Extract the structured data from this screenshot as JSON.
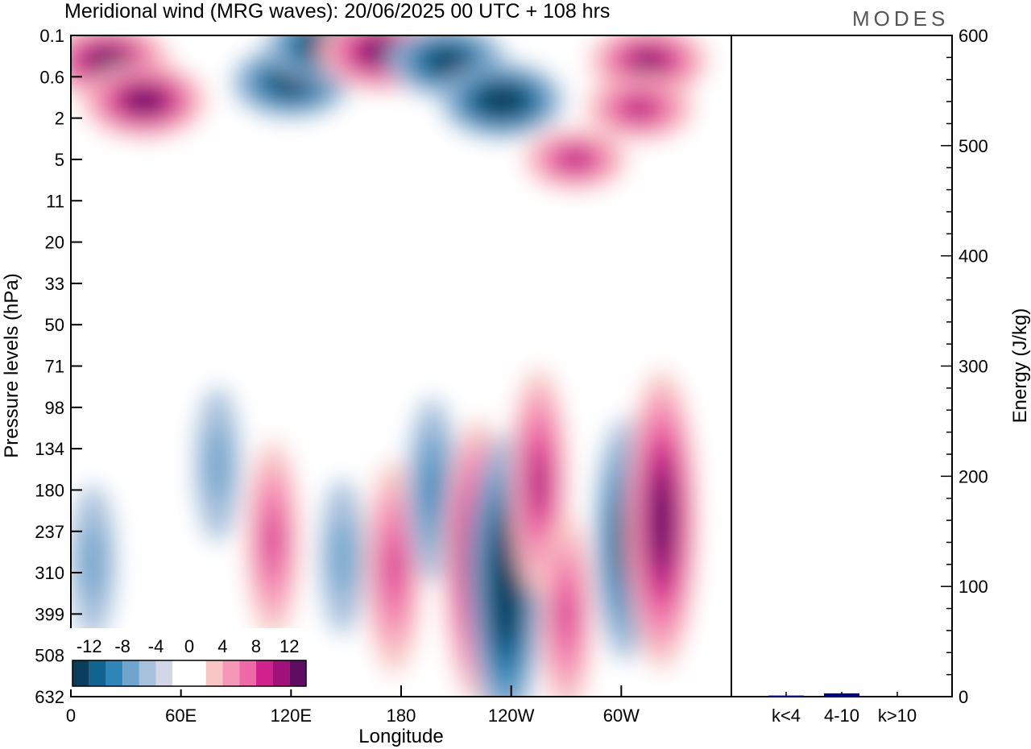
{
  "chart_data": {
    "type": "heatmap",
    "title": "Meridional wind (MRG waves):  20/06/2025  00 UTC  + 108 hrs",
    "logo": "MODES",
    "xlabel": "Longitude",
    "ylabel": "Pressure levels (hPa)",
    "x_ticks": [
      "0",
      "60E",
      "120E",
      "180",
      "120W",
      "60W"
    ],
    "y_ticks": [
      "0.1",
      "0.6",
      "2",
      "5",
      "11",
      "20",
      "33",
      "50",
      "71",
      "98",
      "134",
      "180",
      "237",
      "310",
      "399",
      "508",
      "632"
    ],
    "colorbar": {
      "labels": [
        "-12",
        "-8",
        "-4",
        "0",
        "4",
        "8",
        "12"
      ],
      "colors": [
        "#0a3d5c",
        "#10648f",
        "#2e86b8",
        "#6fa5cc",
        "#a7c0dc",
        "#d3d6e7",
        "#ffffff",
        "#ffffff",
        "#f8c7c5",
        "#f597b8",
        "#ee6aa7",
        "#d0218c",
        "#a0127a",
        "#5e0d63"
      ]
    },
    "energy_panel": {
      "ylabel": "Energy (J/kg)",
      "y_ticks": [
        "0",
        "100",
        "200",
        "300",
        "400",
        "500",
        "600"
      ],
      "ylim": [
        0,
        600
      ],
      "categories": [
        "k<4",
        "4-10",
        "k>10"
      ],
      "values": [
        1,
        3,
        0
      ],
      "bar_colors": [
        "#000080",
        "#000080",
        "#000080"
      ]
    },
    "features": [
      {
        "lon": 20,
        "level": 0.3,
        "v": 13
      },
      {
        "lon": 40,
        "level": 1.2,
        "v": 13
      },
      {
        "lon": 120,
        "level": 0.7,
        "v": -12
      },
      {
        "lon": 140,
        "level": 0.15,
        "v": -13
      },
      {
        "lon": 170,
        "level": 0.2,
        "v": 14
      },
      {
        "lon": 205,
        "level": 0.3,
        "v": -12
      },
      {
        "lon": 235,
        "level": 1.2,
        "v": -13
      },
      {
        "lon": 315,
        "level": 0.3,
        "v": 12
      },
      {
        "lon": 310,
        "level": 1.5,
        "v": 10
      },
      {
        "lon": 275,
        "level": 5,
        "v": 9
      },
      {
        "lon": 110,
        "level": 250,
        "v": 7
      },
      {
        "lon": 176,
        "level": 300,
        "v": 8
      },
      {
        "lon": 197,
        "level": 180,
        "v": -6
      },
      {
        "lon": 222,
        "level": 290,
        "v": 13
      },
      {
        "lon": 237,
        "level": 330,
        "v": -14
      },
      {
        "lon": 255,
        "level": 170,
        "v": 9
      },
      {
        "lon": 270,
        "level": 400,
        "v": 7
      },
      {
        "lon": 302,
        "level": 250,
        "v": -10
      },
      {
        "lon": 322,
        "level": 220,
        "v": 14
      },
      {
        "lon": 12,
        "level": 290,
        "v": -4
      },
      {
        "lon": 80,
        "level": 150,
        "v": -4
      },
      {
        "lon": 148,
        "level": 280,
        "v": -4
      }
    ]
  }
}
